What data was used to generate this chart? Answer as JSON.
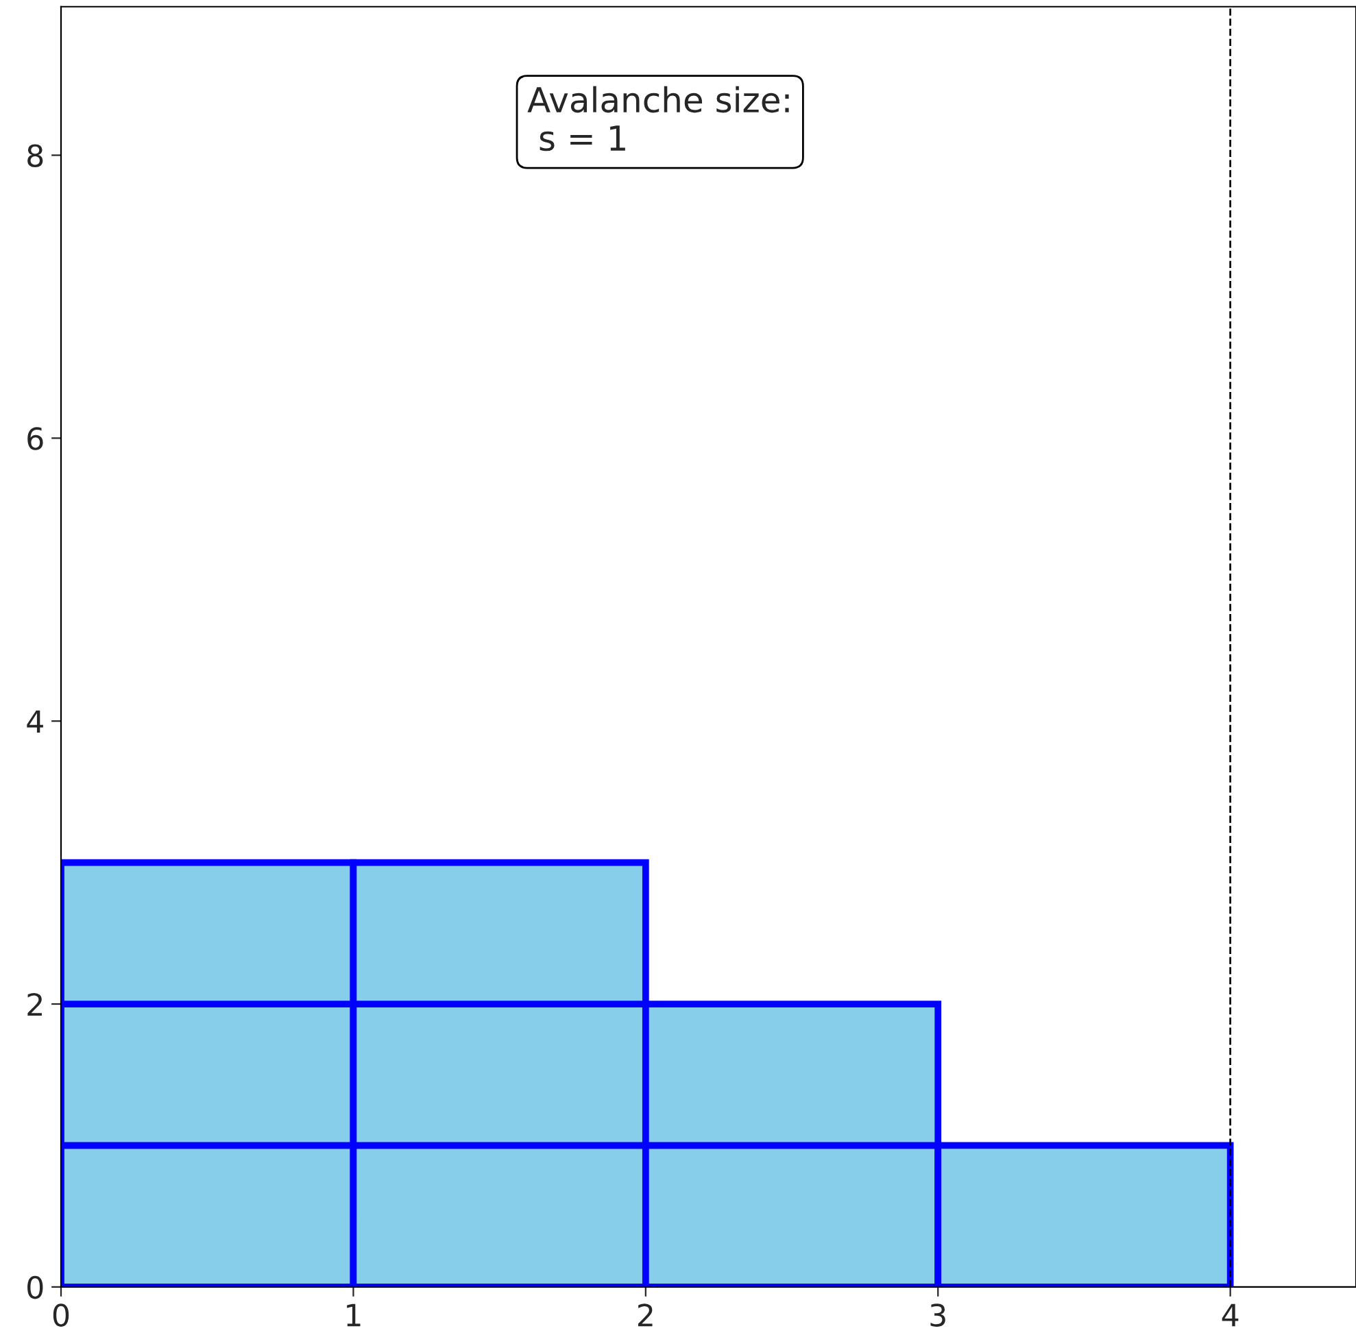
{
  "chart_data": {
    "type": "bar",
    "stacked": true,
    "x": [
      0.5,
      1.5,
      2.5,
      3.5
    ],
    "series": [
      {
        "color": "#87ceeb",
        "values": [
          1,
          1,
          1,
          1
        ]
      },
      {
        "color": "#87ceeb",
        "values": [
          1,
          1,
          1,
          null
        ]
      },
      {
        "color": "#87ceeb",
        "values": [
          1,
          1,
          null,
          null
        ]
      }
    ],
    "xlim": [
      0,
      4.43
    ],
    "xticks": [
      0,
      1,
      2,
      3,
      4
    ],
    "ylim": [
      0,
      9.05
    ],
    "yticks": [
      0,
      2,
      4,
      6,
      8
    ],
    "grid": false,
    "ref_lines": [
      {
        "axis": "x",
        "value": 4,
        "color": "#000000",
        "line_style": "dashed"
      }
    ],
    "annotations": [
      "Avalanche size:\n s = 1"
    ]
  }
}
